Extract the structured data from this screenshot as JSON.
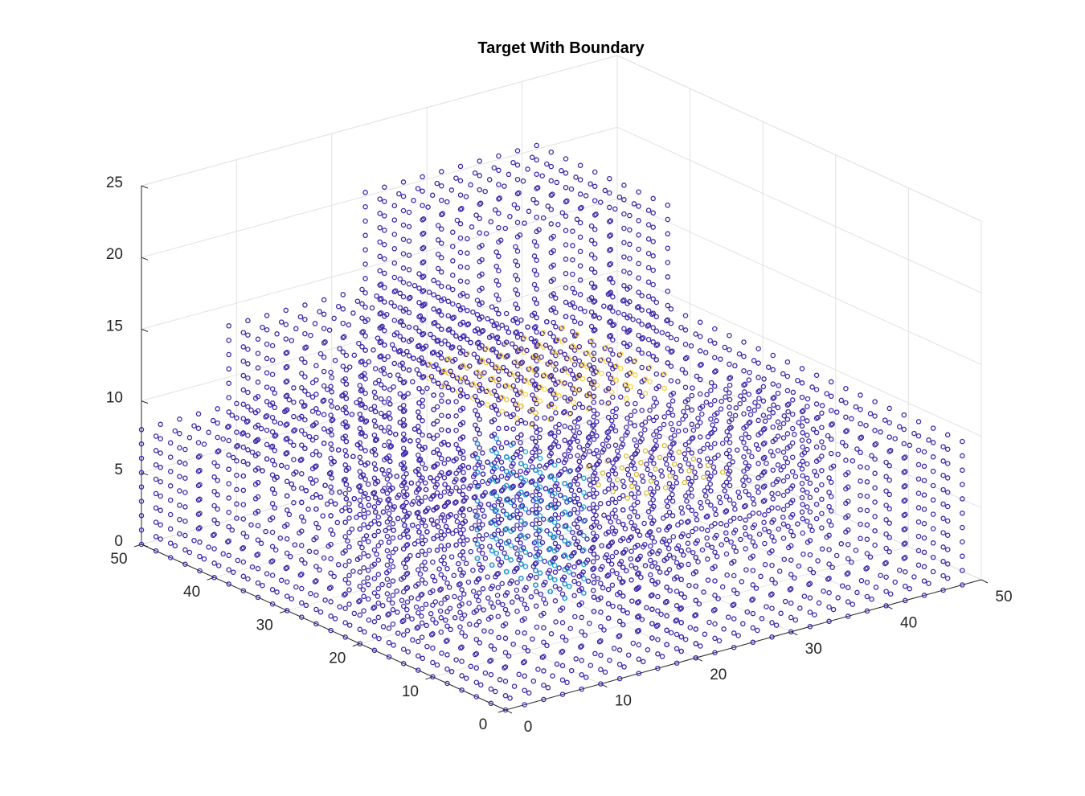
{
  "chart_data": {
    "type": "scatter",
    "title": "Target With Boundary",
    "xlabel": "",
    "ylabel": "",
    "zlabel": "",
    "xlim": [
      0,
      50
    ],
    "ylim": [
      0,
      50
    ],
    "zlim": [
      0,
      25
    ],
    "xticks": [
      "0",
      "10",
      "20",
      "30",
      "40",
      "50"
    ],
    "yticks": [
      "0",
      "10",
      "20",
      "30",
      "40",
      "50"
    ],
    "zticks": [
      "0",
      "5",
      "10",
      "15",
      "20",
      "25"
    ],
    "grid": true,
    "marker": "circle-open",
    "colormap": "parula",
    "colormap_colors": [
      "#3e26a8",
      "#4746eb",
      "#2f83f2",
      "#1ca9d8",
      "#2bbda0",
      "#7ec55a",
      "#d9ba31",
      "#fdd23a",
      "#f9fb15"
    ],
    "background": "#ffffff",
    "description_series": [
      {
        "region": "slab x 0-20, y 0-50, z 0-8",
        "x": [
          0,
          20
        ],
        "y": [
          0,
          50
        ],
        "z": [
          0,
          8
        ],
        "color_level": 0
      },
      {
        "region": "slab x 0-20, y 12-38, z 8-18",
        "x": [
          0,
          20
        ],
        "y": [
          12,
          38
        ],
        "z": [
          8,
          18
        ],
        "color_level": 0
      },
      {
        "region": "slab x 20-48, y 0-48, z 0-10",
        "x": [
          20,
          48
        ],
        "y": [
          0,
          48
        ],
        "z": [
          0,
          10
        ],
        "color_level": 0
      },
      {
        "region": "slab x 22-40, y 30-48, z 10-21",
        "x": [
          22,
          40
        ],
        "y": [
          30,
          48
        ],
        "z": [
          10,
          21
        ],
        "color_level": 0
      },
      {
        "region": "slab x 5-48, y 18-28, z 0-8",
        "x": [
          5,
          48
        ],
        "y": [
          18,
          28
        ],
        "z": [
          0,
          8
        ],
        "color_level": 0
      },
      {
        "region": "interior ridge top z 12-13",
        "x": [
          18,
          32
        ],
        "y": [
          20,
          35
        ],
        "z": [
          12,
          13
        ],
        "color_level": 7
      },
      {
        "region": "interior step top z 8",
        "x": [
          22,
          32
        ],
        "y": [
          12,
          20
        ],
        "z": [
          8,
          8.5
        ],
        "color_level": 6
      },
      {
        "region": "interior wall z 0-8",
        "x": [
          20,
          22
        ],
        "y": [
          18,
          30
        ],
        "z": [
          0,
          8
        ],
        "color_level": 3
      }
    ]
  }
}
